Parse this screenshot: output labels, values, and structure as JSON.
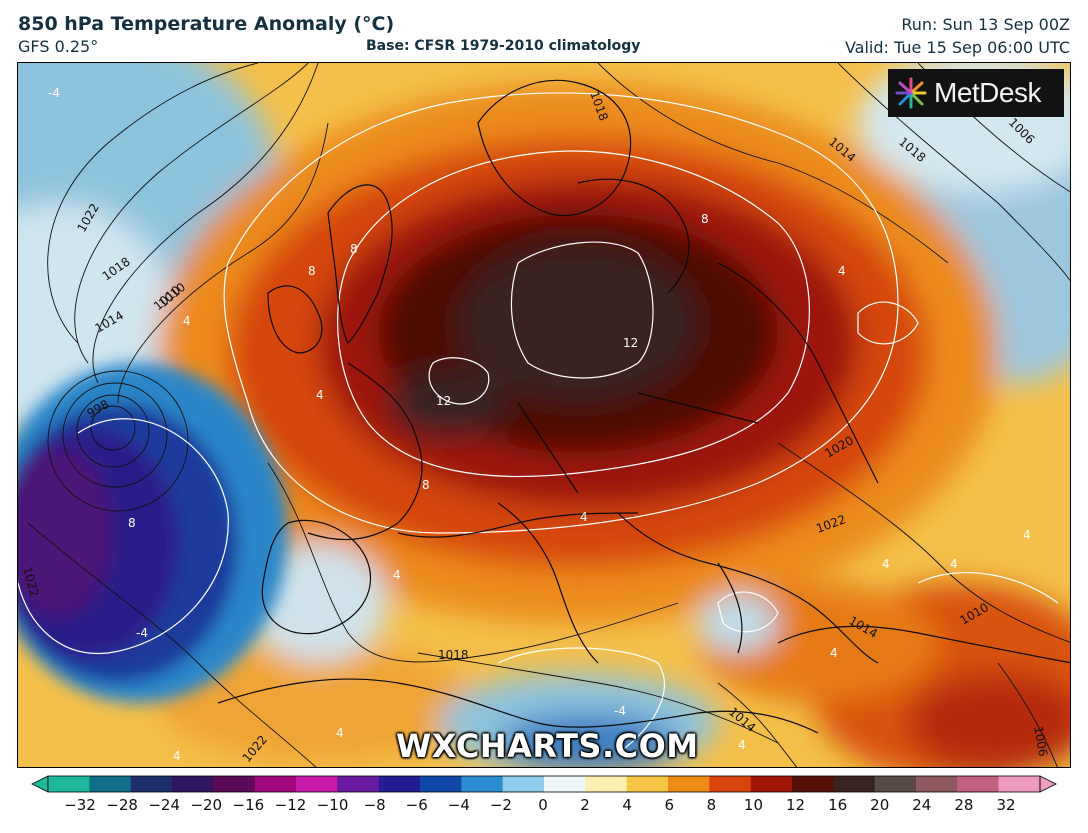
{
  "header": {
    "title": "850 hPa Temperature Anomaly (°C)",
    "model": "GFS 0.25°",
    "base": "Base: CFSR 1979-2010 climatology",
    "run": "Run: Sun 13 Sep 00Z",
    "valid": "Valid: Tue 15 Sep 06:00 UTC"
  },
  "logo": {
    "text": "MetDesk",
    "icon": "metdesk-starburst-logo"
  },
  "watermark": "WXCHARTS.COM",
  "colorbar": {
    "ticks": [
      "−32",
      "−28",
      "−24",
      "−20",
      "−16",
      "−12",
      "−10",
      "−8",
      "−6",
      "−4",
      "−2",
      "0",
      "2",
      "4",
      "6",
      "8",
      "10",
      "12",
      "16",
      "20",
      "24",
      "28",
      "32"
    ],
    "min": -32,
    "max": 32,
    "colors": [
      "#1fb89c",
      "#0f6f86",
      "#1d2f6b",
      "#31155f",
      "#5c0b56",
      "#a3097f",
      "#c71aa9",
      "#6a1aa3",
      "#241c93",
      "#1046a8",
      "#2a8cd0",
      "#8fcbe8",
      "#eef6f8",
      "#fbf0b0",
      "#f6c545",
      "#ef8a17",
      "#d9450d",
      "#a21608",
      "#551106",
      "#3a2320",
      "#5a4a46",
      "#8d5a5f",
      "#c25f82",
      "#ef9cc0"
    ]
  },
  "map_labels": {
    "isobars": [
      "1022",
      "1018",
      "1014",
      "1010",
      "998",
      "1022",
      "1018",
      "1014",
      "1020",
      "1022",
      "1018",
      "1014",
      "1010",
      "1006",
      "1014",
      "1018",
      "1010",
      "1006",
      "1022"
    ],
    "anomalies": [
      "-4",
      "4",
      "8",
      "8",
      "8",
      "12",
      "12",
      "8",
      "4",
      "4",
      "4",
      "8",
      "-4",
      "4",
      "4",
      "4",
      "4",
      "4",
      "4",
      "-4",
      "4",
      "4"
    ]
  }
}
